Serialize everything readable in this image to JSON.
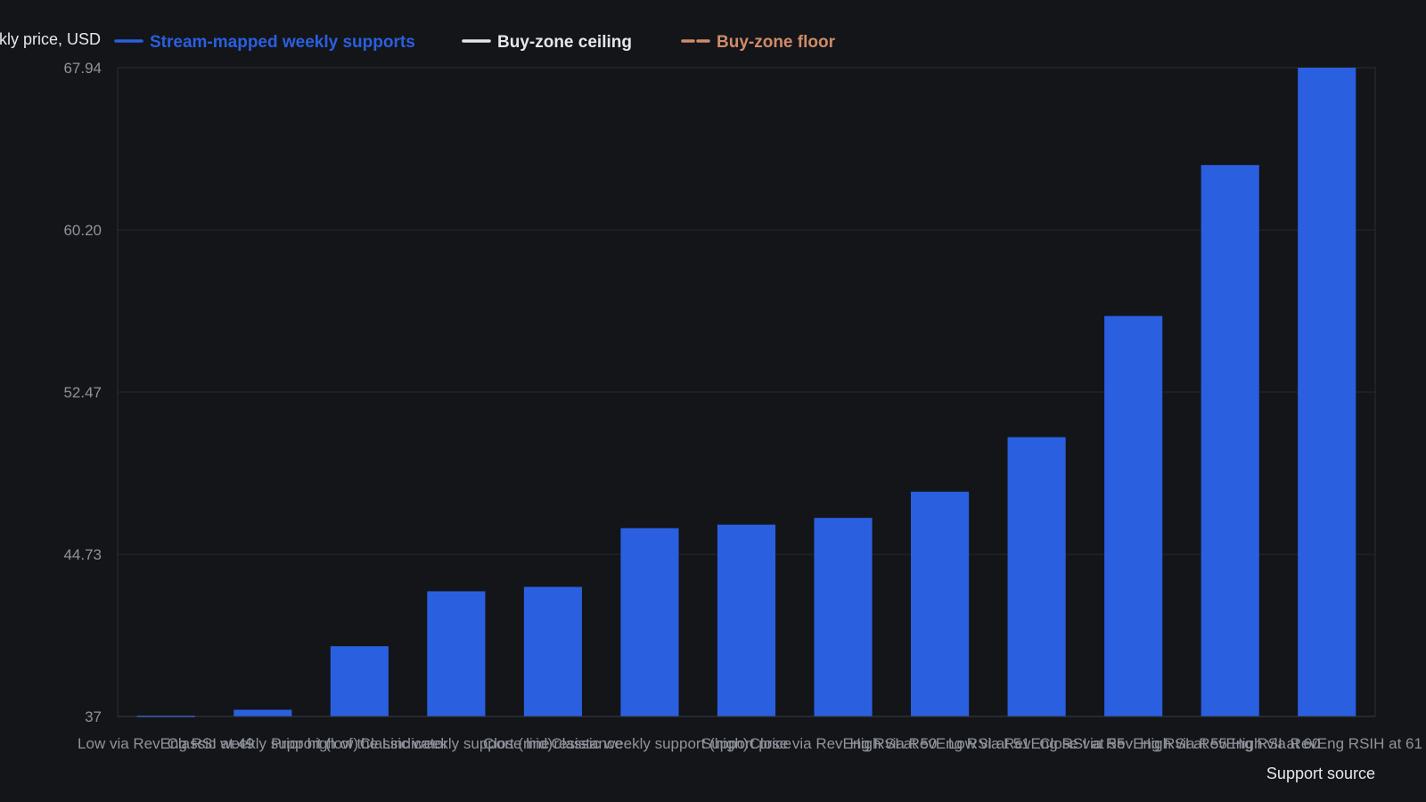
{
  "chart_data": {
    "type": "bar",
    "ylabel": "Weekly price, USD",
    "xlabel": "Support source",
    "ylim": [
      37,
      67.94
    ],
    "yticks": [
      "37",
      "44.73",
      "52.47",
      "60.20",
      "67.94"
    ],
    "grid": true,
    "legend_position": "top-left",
    "legend": [
      {
        "name": "Stream-mapped weekly supports",
        "style": "solid",
        "color": "#2a5fe0"
      },
      {
        "name": "Buy-zone ceiling",
        "style": "solid",
        "color": "#e6e7ea"
      },
      {
        "name": "Buy-zone floor",
        "style": "dashed",
        "color": "#d18a6a"
      }
    ],
    "categories": [
      "Low via RevEng RSI at 49",
      "Classic weekly support (low)",
      "Prior high of the Lindicator",
      "Classic weekly support (mid)",
      "Close line resistance",
      "Classic weekly support (high)",
      "Support price",
      "Close via RevEng RSI at 50",
      "High via RevEng RSI at 51",
      "Low via RevEng RSI at 55",
      "Close via RevEng RSI at 55",
      "High via RevEng RSI at 60",
      "High via RevEng RSIH at 61"
    ],
    "values": [
      36.95,
      37.32,
      40.35,
      42.97,
      43.18,
      45.98,
      46.15,
      46.47,
      47.72,
      50.32,
      56.1,
      63.3,
      67.94
    ],
    "bar_color": "#2a5fe0"
  }
}
